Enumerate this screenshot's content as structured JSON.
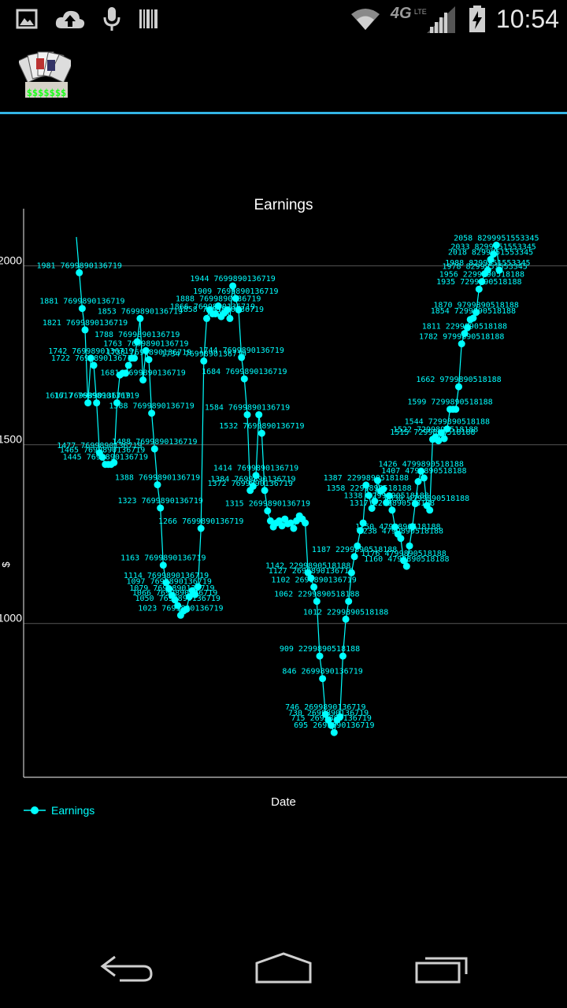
{
  "status_bar": {
    "time": "10:54",
    "network": "4G",
    "network_sub": "LTE",
    "icons": [
      "image-icon",
      "cloud-upload-icon",
      "mic-icon",
      "barcode-icon",
      "wifi-icon",
      "signal-icon",
      "battery-charging-icon"
    ]
  },
  "action_bar": {
    "app_icon": "poker-cards-icon",
    "app_icon_text": "$$$$$$$",
    "accent_color": "#33b5e5"
  },
  "chart_data": {
    "type": "line",
    "title": "Earnings",
    "xlabel": "Date",
    "ylabel": "$",
    "ylim": [
      570,
      2160
    ],
    "yticks": [
      1000,
      1500,
      2000
    ],
    "grid": "horizontal",
    "legend_position": "bottom-left",
    "color": "#00ffff",
    "series": [
      {
        "name": "Earnings",
        "values": [
          2081,
          1981,
          1881,
          1821,
          1617,
          1742,
          1722,
          1617,
          1477,
          1465,
          1445,
          1445,
          1445,
          1450,
          1617,
          1695,
          1700,
          1700,
          1722,
          1742,
          1742,
          1788,
          1853,
          1681,
          1763,
          1738,
          1588,
          1488,
          1388,
          1323,
          1163,
          1114,
          1097,
          1079,
          1066,
          1050,
          1023,
          1035,
          1040,
          1075,
          1092,
          1081,
          1103,
          1266,
          1734,
          1853,
          1877,
          1866,
          1866,
          1888,
          1858,
          1868,
          1877,
          1853,
          1944,
          1909,
          1877,
          1744,
          1684,
          1584,
          1372,
          1384,
          1414,
          1584,
          1532,
          1372,
          1315,
          1287,
          1270,
          1281,
          1287,
          1273,
          1292,
          1279,
          1281,
          1266,
          1287,
          1301,
          1292,
          1281,
          1142,
          1127,
          1102,
          1062,
          909,
          846,
          746,
          730,
          715,
          695,
          730,
          739,
          909,
          1012,
          1062,
          1142,
          1187,
          1217,
          1260,
          1281,
          1387,
          1358,
          1322,
          1342,
          1400,
          1370,
          1376,
          1338,
          1357,
          1317,
          1270,
          1250,
          1238,
          1176,
          1160,
          1217,
          1271,
          1335,
          1397,
          1426,
          1407,
          1330,
          1317,
          1515,
          1522,
          1511,
          1533,
          1517,
          1544,
          1599,
          1599,
          1599,
          1662,
          1782,
          1811,
          1827,
          1850,
          1854,
          1870,
          1935,
          1956,
          1978,
          1988,
          2018,
          2033,
          2058,
          1988
        ]
      }
    ],
    "data_labels": [
      "1981 7699890136719",
      "1881 7699890136719",
      "1821 7699890136719",
      "1742 7699890136719",
      "1722 7699890136719",
      "1681 7699890136719",
      "1617 7699890136719",
      "1617 7699890136719",
      "1588 7699890136719",
      "1488 7699890136719",
      "1477 7699890136719",
      "1465 7699890136719",
      "1445 7699890136719",
      "1853 7699890136719",
      "1788 7699890136719",
      "1763 7699890136719",
      "1738 7699890136719",
      "1734 7699890136719",
      "1388 7699890136719",
      "1323 7699890136719",
      "1266 7699890136719",
      "1163 7699890136719",
      "1114 7699890136719",
      "1097 7699890136719",
      "1079 7699890136719",
      "1066 7699890136719",
      "1050 7699890136719",
      "1023 7699890136719",
      "1944 7699890136719",
      "1909 7699890136719",
      "1888 7699890136719",
      "1866 7699890136719",
      "1858 7699890136719",
      "1744 7699890136719",
      "1684 7699890136719",
      "1584 7699890136719",
      "1532 7699890136719",
      "1414 7699890136719",
      "1384 7699890136719",
      "1372 7699890136719",
      "1315 2699890136719",
      "1127 2699890136719",
      "1102 2699890136719",
      "1062 2299890518188",
      "1012 2299890518188",
      "909 2299890518188",
      "846 2699890136719",
      "746 2699890136719",
      "730 2699890136719",
      "715 2699890136719",
      "695 2699890136719",
      "1387 2299890518188",
      "1358 2299890518188",
      "1338 2299890518188",
      "1317 2299890518188",
      "1250 4799890518188",
      "1238 4799890518188",
      "1187 2299890518188",
      "1176 4799890518188",
      "1160 4799890518188",
      "1142 2299890518188",
      "1426 4799890518188",
      "1407 4799890518188",
      "1330 4799890518188",
      "1544 7299890518188",
      "1522 7299890518188",
      "1515 7299890518188",
      "1599 7299890518188",
      "1662 9799890518188",
      "1782 9799890518188",
      "1811 2299890518188",
      "1854 7299890518188",
      "1870 9799890518188",
      "1935 7299890518188",
      "1956 2299890518188",
      "1978 8299951553345",
      "1988 8299951553345",
      "2018 8299951553345",
      "2033 8299951553345",
      "2058 8299951553345"
    ]
  }
}
